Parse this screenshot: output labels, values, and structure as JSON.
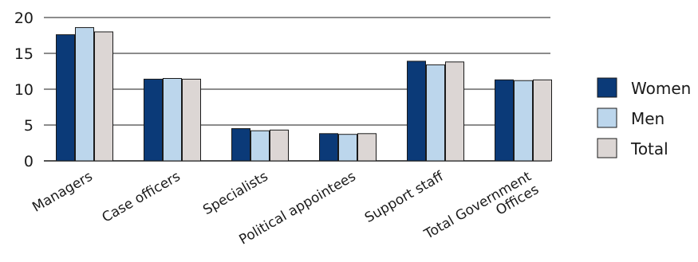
{
  "chart_data": {
    "type": "bar",
    "title": "",
    "xlabel": "",
    "ylabel": "",
    "ylim": [
      0,
      20
    ],
    "yticks": [
      0,
      5,
      10,
      15,
      20
    ],
    "grid": true,
    "legend_position": "right",
    "categories": [
      [
        "Managers"
      ],
      [
        "Case officers"
      ],
      [
        "Specialists"
      ],
      [
        "Political appointees"
      ],
      [
        "Support staff"
      ],
      [
        "Total Government",
        "Offices"
      ]
    ],
    "series": [
      {
        "name": "Women",
        "color": "#0b3a78",
        "values": [
          17.6,
          11.4,
          4.5,
          3.8,
          13.9,
          11.3
        ]
      },
      {
        "name": "Men",
        "color": "#bcd6ec",
        "values": [
          18.6,
          11.5,
          4.2,
          3.7,
          13.4,
          11.2
        ]
      },
      {
        "name": "Total",
        "color": "#dcd6d4",
        "values": [
          18.0,
          11.4,
          4.3,
          3.8,
          13.8,
          11.3
        ]
      }
    ]
  }
}
